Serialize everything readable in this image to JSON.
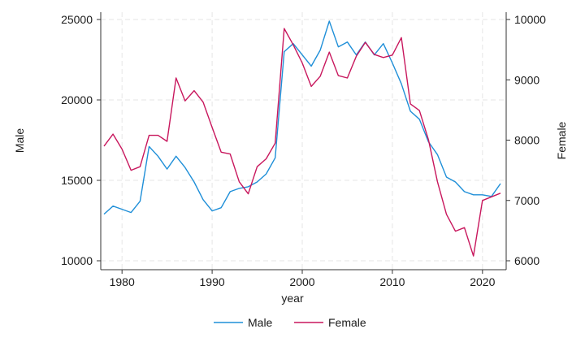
{
  "chart_data": {
    "type": "line",
    "title": "",
    "xlabel": "year",
    "ylabel_left": "Male",
    "ylabel_right": "Female",
    "xlim": [
      1978,
      2022
    ],
    "ylim_left": [
      10000,
      25000
    ],
    "ylim_right": [
      6000,
      10000
    ],
    "xticks": [
      1980,
      1990,
      2000,
      2010,
      2020
    ],
    "yticks_left": [
      10000,
      15000,
      20000,
      25000
    ],
    "yticks_right": [
      6000,
      7000,
      8000,
      9000,
      10000
    ],
    "grid": true,
    "legend_position": "bottom",
    "x": [
      1978,
      1979,
      1980,
      1981,
      1982,
      1983,
      1984,
      1985,
      1986,
      1987,
      1988,
      1989,
      1990,
      1991,
      1992,
      1993,
      1994,
      1995,
      1996,
      1997,
      1998,
      1999,
      2000,
      2001,
      2002,
      2003,
      2004,
      2005,
      2006,
      2007,
      2008,
      2009,
      2010,
      2011,
      2012,
      2013,
      2014,
      2015,
      2016,
      2017,
      2018,
      2019,
      2020,
      2021,
      2022
    ],
    "series": [
      {
        "name": "Male",
        "axis": "left",
        "color": "#1f8fd8",
        "values": [
          12900,
          13400,
          13200,
          13000,
          13700,
          17100,
          16500,
          15700,
          16500,
          15800,
          14900,
          13800,
          13100,
          13300,
          14300,
          14500,
          14600,
          14900,
          15400,
          16400,
          23000,
          23500,
          22800,
          22100,
          23100,
          24900,
          23300,
          23600,
          22800,
          23600,
          22800,
          23500,
          22300,
          21000,
          19300,
          18800,
          17400,
          16600,
          15200,
          14900,
          14300,
          14100,
          14100,
          14000,
          14800
        ]
      },
      {
        "name": "Female",
        "axis": "right",
        "color": "#c8175d",
        "values": [
          7900,
          8100,
          7850,
          7500,
          7560,
          8080,
          8080,
          7980,
          9030,
          8650,
          8820,
          8630,
          8210,
          7800,
          7770,
          7310,
          7110,
          7560,
          7690,
          7950,
          9850,
          9580,
          9280,
          8890,
          9060,
          9460,
          9070,
          9030,
          9390,
          9620,
          9420,
          9370,
          9410,
          9700,
          8600,
          8490,
          8010,
          7310,
          6770,
          6490,
          6550,
          6080,
          7000,
          7060,
          7120
        ]
      }
    ]
  }
}
